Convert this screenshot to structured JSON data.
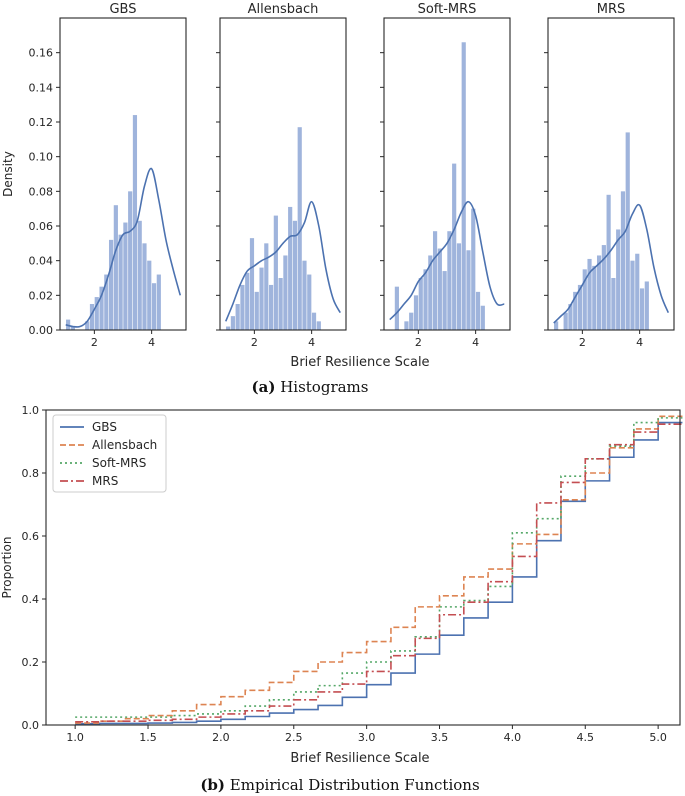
{
  "captions": {
    "a_label": "(a)",
    "a_text": " Histograms",
    "b_label": "(b)",
    "b_text": " Empirical Distribution Functions"
  },
  "chart_data": [
    {
      "type": "histogram",
      "group": "histograms",
      "ylabel": "Density",
      "xlabel": "Brief Resilience Scale",
      "xlim": [
        0.8,
        5.2
      ],
      "ylim": [
        0,
        0.18
      ],
      "xticks": [
        2,
        4
      ],
      "yticks": [
        0.0,
        0.02,
        0.04,
        0.06,
        0.08,
        0.1,
        0.12,
        0.14,
        0.16
      ],
      "ytick_labels": [
        "0.00",
        "0.02",
        "0.04",
        "0.06",
        "0.08",
        "0.10",
        "0.12",
        "0.14",
        "0.16"
      ],
      "xtick_labels": [
        "2",
        "4"
      ],
      "bin_edges_start": 1.0,
      "bin_width": 0.1667,
      "colors": {
        "bar": "#9fb4dc",
        "kde": "#4c72b0"
      },
      "panels": [
        {
          "title": "GBS",
          "values": [
            0.006,
            0.002,
            0.0,
            0.0,
            0.005,
            0.015,
            0.019,
            0.025,
            0.032,
            0.052,
            0.072,
            0.055,
            0.062,
            0.08,
            0.124,
            0.063,
            0.05,
            0.04,
            0.027,
            0.032
          ],
          "kde_x": [
            1.0,
            1.25,
            1.5,
            1.75,
            2.0,
            2.25,
            2.5,
            2.75,
            3.0,
            3.25,
            3.5,
            3.75,
            4.0,
            4.25,
            4.5,
            4.75,
            5.0
          ],
          "kde_y": [
            0.003,
            0.002,
            0.002,
            0.005,
            0.012,
            0.02,
            0.032,
            0.046,
            0.055,
            0.057,
            0.063,
            0.083,
            0.093,
            0.075,
            0.052,
            0.035,
            0.02
          ]
        },
        {
          "title": "Allensbach",
          "values": [
            0.002,
            0.008,
            0.015,
            0.026,
            0.033,
            0.053,
            0.022,
            0.036,
            0.05,
            0.026,
            0.066,
            0.03,
            0.043,
            0.071,
            0.063,
            0.117,
            0.04,
            0.032,
            0.01,
            0.005
          ],
          "kde_x": [
            1.0,
            1.25,
            1.5,
            1.75,
            2.0,
            2.25,
            2.5,
            2.75,
            3.0,
            3.25,
            3.5,
            3.75,
            4.0,
            4.25,
            4.5,
            4.75,
            5.0
          ],
          "kde_y": [
            0.005,
            0.015,
            0.026,
            0.034,
            0.037,
            0.04,
            0.042,
            0.045,
            0.05,
            0.054,
            0.055,
            0.062,
            0.074,
            0.06,
            0.035,
            0.018,
            0.01
          ]
        },
        {
          "title": "Soft-MRS",
          "values": [
            0.0,
            0.025,
            0.0,
            0.005,
            0.01,
            0.02,
            0.03,
            0.035,
            0.043,
            0.057,
            0.047,
            0.034,
            0.057,
            0.096,
            0.05,
            0.166,
            0.046,
            0.07,
            0.022,
            0.014
          ],
          "kde_x": [
            1.0,
            1.25,
            1.5,
            1.75,
            2.0,
            2.25,
            2.5,
            2.75,
            3.0,
            3.25,
            3.5,
            3.75,
            4.0,
            4.25,
            4.5,
            4.75,
            5.0
          ],
          "kde_y": [
            0.006,
            0.01,
            0.015,
            0.02,
            0.028,
            0.033,
            0.04,
            0.045,
            0.05,
            0.058,
            0.068,
            0.074,
            0.066,
            0.045,
            0.025,
            0.015,
            0.015
          ]
        },
        {
          "title": "MRS",
          "values": [
            0.005,
            0.0,
            0.01,
            0.015,
            0.022,
            0.026,
            0.035,
            0.041,
            0.037,
            0.043,
            0.049,
            0.078,
            0.03,
            0.058,
            0.08,
            0.114,
            0.04,
            0.044,
            0.024,
            0.028
          ],
          "kde_x": [
            1.0,
            1.25,
            1.5,
            1.75,
            2.0,
            2.25,
            2.5,
            2.75,
            3.0,
            3.25,
            3.5,
            3.75,
            4.0,
            4.25,
            4.5,
            4.75,
            5.0
          ],
          "kde_y": [
            0.004,
            0.008,
            0.012,
            0.019,
            0.026,
            0.033,
            0.037,
            0.041,
            0.046,
            0.052,
            0.057,
            0.067,
            0.072,
            0.058,
            0.036,
            0.02,
            0.01
          ]
        }
      ]
    },
    {
      "type": "line",
      "subtype": "step",
      "xlabel": "Brief Resilience Scale",
      "ylabel": "Proportion",
      "xlim": [
        0.8,
        5.15
      ],
      "ylim": [
        0,
        1.0
      ],
      "xticks": [
        1.0,
        1.5,
        2.0,
        2.5,
        3.0,
        3.5,
        4.0,
        4.5,
        5.0
      ],
      "xtick_labels": [
        "1.0",
        "1.5",
        "2.0",
        "2.5",
        "3.0",
        "3.5",
        "4.0",
        "4.5",
        "5.0"
      ],
      "yticks": [
        0.0,
        0.2,
        0.4,
        0.6,
        0.8,
        1.0
      ],
      "ytick_labels": [
        "0.0",
        "0.2",
        "0.4",
        "0.6",
        "0.8",
        "1.0"
      ],
      "legend_position": "top-left",
      "x": [
        1.0,
        1.1667,
        1.3333,
        1.5,
        1.6667,
        1.8333,
        2.0,
        2.1667,
        2.3333,
        2.5,
        2.6667,
        2.8333,
        3.0,
        3.1667,
        3.3333,
        3.5,
        3.6667,
        3.8333,
        4.0,
        4.1667,
        4.3333,
        4.5,
        4.6667,
        4.8333,
        5.0
      ],
      "series": [
        {
          "name": "GBS",
          "color": "#4c72b0",
          "dash": "",
          "values": [
            0.004,
            0.005,
            0.005,
            0.006,
            0.008,
            0.012,
            0.018,
            0.027,
            0.038,
            0.049,
            0.062,
            0.088,
            0.128,
            0.165,
            0.225,
            0.285,
            0.34,
            0.39,
            0.47,
            0.585,
            0.71,
            0.775,
            0.85,
            0.905,
            0.96
          ]
        },
        {
          "name": "Allensbach",
          "color": "#dd8452",
          "dash": "6,3",
          "values": [
            0.006,
            0.012,
            0.02,
            0.03,
            0.045,
            0.065,
            0.09,
            0.11,
            0.135,
            0.17,
            0.2,
            0.23,
            0.265,
            0.31,
            0.375,
            0.41,
            0.47,
            0.495,
            0.575,
            0.605,
            0.715,
            0.8,
            0.88,
            0.94,
            0.98
          ]
        },
        {
          "name": "Soft-MRS",
          "color": "#55a868",
          "dash": "2,3",
          "values": [
            0.025,
            0.025,
            0.025,
            0.025,
            0.03,
            0.035,
            0.045,
            0.06,
            0.08,
            0.105,
            0.125,
            0.165,
            0.2,
            0.235,
            0.28,
            0.375,
            0.395,
            0.44,
            0.61,
            0.655,
            0.79,
            0.845,
            0.885,
            0.96,
            0.975
          ]
        },
        {
          "name": "MRS",
          "color": "#c44e52",
          "dash": "8,3,2,3",
          "values": [
            0.01,
            0.012,
            0.012,
            0.015,
            0.018,
            0.025,
            0.035,
            0.045,
            0.06,
            0.08,
            0.105,
            0.13,
            0.17,
            0.22,
            0.275,
            0.35,
            0.39,
            0.455,
            0.535,
            0.705,
            0.77,
            0.845,
            0.89,
            0.93,
            0.955
          ]
        }
      ]
    }
  ]
}
